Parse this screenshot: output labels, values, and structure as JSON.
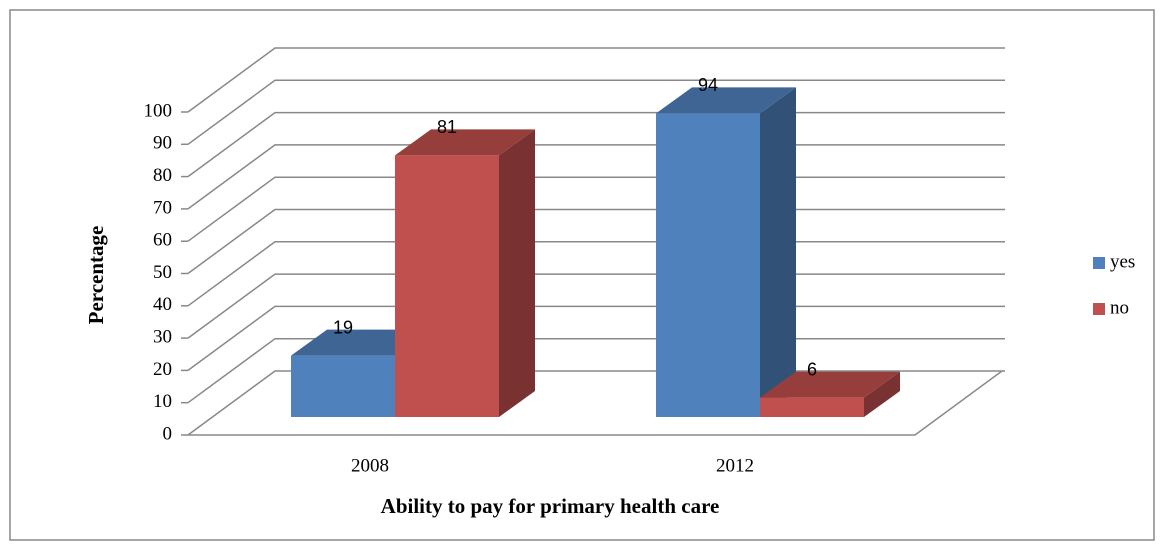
{
  "chart_data": {
    "type": "bar3d",
    "x_label": "Ability  to pay for primary  health care",
    "y_label": "Percentage",
    "categories": [
      "2008",
      "2012"
    ],
    "series": [
      {
        "name": "yes",
        "color": "#4f81bd",
        "values": [
          19,
          94
        ]
      },
      {
        "name": "no",
        "color": "#c0504d",
        "values": [
          81,
          6
        ]
      }
    ],
    "ylim": [
      0,
      100
    ],
    "yticks": [
      0,
      10,
      20,
      30,
      40,
      50,
      60,
      70,
      80,
      90,
      100
    ],
    "grid": true,
    "legend": "right"
  }
}
